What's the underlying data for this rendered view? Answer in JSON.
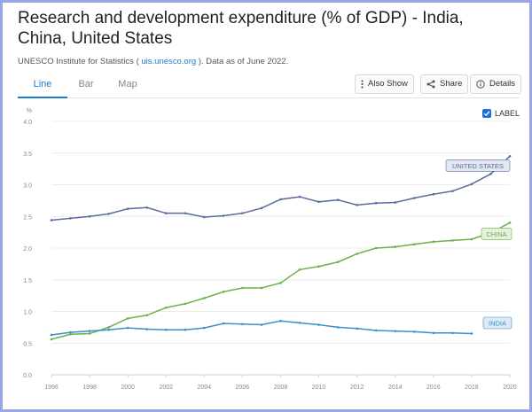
{
  "header": {
    "title": "Research and development expenditure (% of GDP) - India, China, United States",
    "source_prefix": "UNESCO Institute for Statistics ( ",
    "source_link": "uis.unesco.org",
    "source_suffix": " ). Data as of June 2022."
  },
  "tabs": [
    {
      "label": "Line",
      "active": true
    },
    {
      "label": "Bar",
      "active": false
    },
    {
      "label": "Map",
      "active": false
    }
  ],
  "toolbar": {
    "also_show_label": "Also Show",
    "share_label": "Share",
    "details_label": "Details"
  },
  "label_toggle": {
    "label": "LABEL",
    "checked": true
  },
  "colors": {
    "united_states": "#5a6a9e",
    "china": "#6ab04c",
    "india": "#3a8fc9",
    "accent": "#1f7ac9"
  },
  "chart_data": {
    "type": "line",
    "ylabel": "%",
    "ylim": [
      0,
      4.0
    ],
    "yticks": [
      "0.0",
      "0.5",
      "1.0",
      "1.5",
      "2.0",
      "2.5",
      "3.0",
      "3.5",
      "4.0"
    ],
    "xlim": [
      1996,
      2020
    ],
    "xticks": [
      "1996",
      "1998",
      "2000",
      "2002",
      "2004",
      "2006",
      "2008",
      "2010",
      "2012",
      "2014",
      "2016",
      "2018",
      "2020"
    ],
    "grid": true,
    "series": [
      {
        "name": "UNITED STATES",
        "color_key": "united_states",
        "x": [
          1996,
          1997,
          1998,
          1999,
          2000,
          2001,
          2002,
          2003,
          2004,
          2005,
          2006,
          2007,
          2008,
          2009,
          2010,
          2011,
          2012,
          2013,
          2014,
          2015,
          2016,
          2017,
          2018,
          2019,
          2020
        ],
        "y": [
          2.44,
          2.47,
          2.5,
          2.54,
          2.62,
          2.64,
          2.55,
          2.55,
          2.49,
          2.51,
          2.55,
          2.63,
          2.77,
          2.81,
          2.73,
          2.76,
          2.68,
          2.71,
          2.72,
          2.79,
          2.85,
          2.9,
          3.01,
          3.17,
          3.45
        ]
      },
      {
        "name": "CHINA",
        "color_key": "china",
        "x": [
          1996,
          1997,
          1998,
          1999,
          2000,
          2001,
          2002,
          2003,
          2004,
          2005,
          2006,
          2007,
          2008,
          2009,
          2010,
          2011,
          2012,
          2013,
          2014,
          2015,
          2016,
          2017,
          2018,
          2019,
          2020
        ],
        "y": [
          0.56,
          0.64,
          0.65,
          0.75,
          0.89,
          0.94,
          1.06,
          1.12,
          1.21,
          1.31,
          1.37,
          1.37,
          1.45,
          1.66,
          1.71,
          1.78,
          1.91,
          2.0,
          2.02,
          2.06,
          2.1,
          2.12,
          2.14,
          2.24,
          2.4
        ]
      },
      {
        "name": "INDIA",
        "color_key": "india",
        "x": [
          1996,
          1997,
          1998,
          1999,
          2000,
          2001,
          2002,
          2003,
          2004,
          2005,
          2006,
          2007,
          2008,
          2009,
          2010,
          2011,
          2012,
          2013,
          2014,
          2015,
          2016,
          2017,
          2018
        ],
        "y": [
          0.63,
          0.67,
          0.69,
          0.71,
          0.74,
          0.72,
          0.71,
          0.71,
          0.74,
          0.81,
          0.8,
          0.79,
          0.85,
          0.82,
          0.79,
          0.75,
          0.73,
          0.7,
          0.69,
          0.68,
          0.66,
          0.66,
          0.65
        ]
      }
    ]
  }
}
